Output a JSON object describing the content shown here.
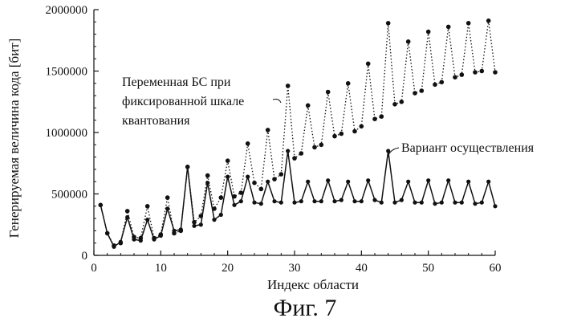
{
  "chart_data": {
    "type": "line",
    "title": "",
    "xlabel": "Индекс области",
    "ylabel": "Генерируемая величина кода [бит]",
    "xlim": [
      0,
      60
    ],
    "ylim": [
      0,
      2000000
    ],
    "x_ticks": [
      0,
      10,
      20,
      30,
      40,
      50,
      60
    ],
    "y_ticks": [
      0,
      500000,
      1000000,
      1500000,
      2000000
    ],
    "x_tick_labels": [
      "0",
      "10",
      "20",
      "30",
      "40",
      "50",
      "60"
    ],
    "y_tick_labels": [
      "0",
      "500000",
      "1000000",
      "1500000",
      "2000000"
    ],
    "grid": false,
    "series": [
      {
        "name": "Переменная БС при фиксированной шкале квантования",
        "style": "dotted",
        "x": [
          1,
          2,
          3,
          4,
          5,
          6,
          7,
          8,
          9,
          10,
          11,
          12,
          13,
          14,
          15,
          16,
          17,
          18,
          19,
          20,
          21,
          22,
          23,
          24,
          25,
          26,
          27,
          28,
          29,
          30,
          31,
          32,
          33,
          34,
          35,
          36,
          37,
          38,
          39,
          40,
          41,
          42,
          43,
          44,
          45,
          46,
          47,
          48,
          49,
          50,
          51,
          52,
          53,
          54,
          55,
          56,
          57,
          58,
          59,
          60
        ],
        "values": [
          410000,
          180000,
          80000,
          100000,
          360000,
          150000,
          140000,
          400000,
          140000,
          170000,
          470000,
          180000,
          200000,
          720000,
          270000,
          320000,
          650000,
          380000,
          470000,
          770000,
          480000,
          510000,
          910000,
          590000,
          540000,
          1020000,
          620000,
          660000,
          1380000,
          790000,
          830000,
          1220000,
          880000,
          900000,
          1330000,
          970000,
          990000,
          1400000,
          1010000,
          1050000,
          1560000,
          1110000,
          1130000,
          1890000,
          1230000,
          1250000,
          1740000,
          1320000,
          1340000,
          1820000,
          1390000,
          1410000,
          1860000,
          1450000,
          1470000,
          1890000,
          1490000,
          1500000,
          1910000,
          1490000
        ]
      },
      {
        "name": "Вариант осуществления",
        "style": "solid",
        "x": [
          1,
          2,
          3,
          4,
          5,
          6,
          7,
          8,
          9,
          10,
          11,
          12,
          13,
          14,
          15,
          16,
          17,
          18,
          19,
          20,
          21,
          22,
          23,
          24,
          25,
          26,
          27,
          28,
          29,
          30,
          31,
          32,
          33,
          34,
          35,
          36,
          37,
          38,
          39,
          40,
          41,
          42,
          43,
          44,
          45,
          46,
          47,
          48,
          49,
          50,
          51,
          52,
          53,
          54,
          55,
          56,
          57,
          58,
          59,
          60
        ],
        "values": [
          410000,
          180000,
          70000,
          110000,
          310000,
          130000,
          120000,
          290000,
          130000,
          160000,
          380000,
          200000,
          210000,
          720000,
          240000,
          250000,
          590000,
          290000,
          330000,
          640000,
          410000,
          440000,
          640000,
          430000,
          420000,
          600000,
          440000,
          430000,
          850000,
          430000,
          440000,
          600000,
          440000,
          440000,
          610000,
          440000,
          450000,
          600000,
          440000,
          440000,
          610000,
          450000,
          430000,
          850000,
          430000,
          450000,
          600000,
          430000,
          430000,
          610000,
          420000,
          430000,
          610000,
          430000,
          430000,
          600000,
          420000,
          430000,
          600000,
          400000
        ]
      }
    ],
    "annotations": [
      {
        "lines": [
          "Переменная БС при",
          "фиксированной шкале",
          "квантования"
        ],
        "points_to_series": 0
      },
      {
        "lines": [
          "Вариант осуществления"
        ],
        "points_to_series": 1
      }
    ]
  },
  "caption": "Фиг. 7"
}
